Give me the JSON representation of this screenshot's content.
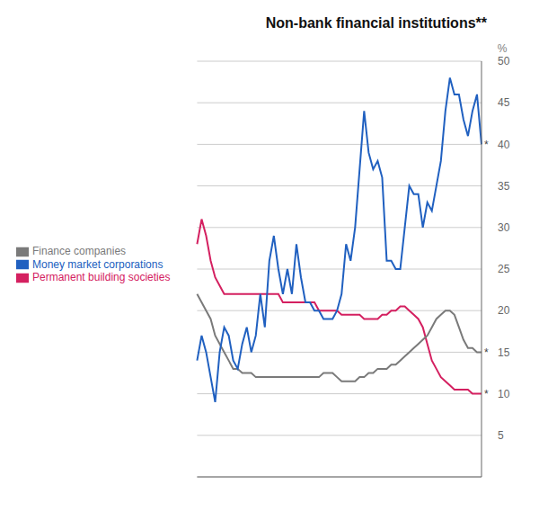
{
  "chart_data": {
    "type": "line",
    "title": "Non-bank financial institutions**",
    "categories": [
      null,
      null,
      null,
      null,
      null,
      null,
      null,
      null,
      null,
      null,
      null,
      null,
      null,
      null,
      null,
      null,
      null,
      null,
      null,
      null,
      null,
      null,
      null,
      null,
      null,
      null,
      null,
      null,
      null,
      null,
      null,
      null,
      null,
      null,
      null,
      null,
      null,
      null,
      null,
      null,
      null,
      null,
      null,
      null,
      null,
      null,
      null,
      null,
      null,
      null,
      null,
      null,
      null,
      null,
      null,
      null,
      null,
      null,
      null,
      null,
      null,
      null,
      null,
      null
    ],
    "series": [
      {
        "name": "Permanent building societies",
        "color": "#d42060",
        "values": [
          28,
          31,
          29,
          26,
          24,
          23,
          22,
          22,
          22,
          22,
          22,
          22,
          22,
          22,
          22,
          22,
          22,
          22,
          22,
          21,
          21,
          21,
          21,
          21,
          21,
          21,
          21,
          20,
          20,
          20,
          20,
          20,
          19.5,
          19.5,
          19.5,
          19.5,
          19.5,
          19,
          19,
          19,
          19,
          19.5,
          19.5,
          20,
          20,
          20.5,
          20.5,
          20,
          19.5,
          19,
          18,
          16,
          14,
          13,
          12,
          11.5,
          11,
          10.5,
          10.5,
          10.5,
          10.5,
          10,
          10,
          10
        ]
      },
      {
        "name": "Finance companies",
        "color": "#7a7a7a",
        "values": [
          22,
          21,
          20,
          19,
          17,
          16,
          15,
          14,
          13,
          13,
          12.5,
          12.5,
          12.5,
          12,
          12,
          12,
          12,
          12,
          12,
          12,
          12,
          12,
          12,
          12,
          12,
          12,
          12,
          12,
          12.5,
          12.5,
          12.5,
          12,
          11.5,
          11.5,
          11.5,
          11.5,
          12,
          12,
          12.5,
          12.5,
          13,
          13,
          13,
          13.5,
          13.5,
          14,
          14.5,
          15,
          15.5,
          16,
          16.5,
          17,
          18,
          19,
          19.5,
          20,
          20,
          19.5,
          18,
          16.5,
          15.5,
          15.5,
          15,
          15
        ]
      },
      {
        "name": "Money market corporations",
        "color": "#2060c0",
        "values": [
          14,
          17,
          15,
          12,
          9,
          15,
          18,
          17,
          14,
          13,
          16,
          18,
          15,
          17,
          22,
          18,
          26,
          29,
          25,
          22,
          25,
          22,
          28,
          24,
          21,
          21,
          20,
          20,
          19,
          19,
          19,
          20,
          22,
          28,
          26,
          30,
          37,
          44,
          39,
          37,
          38,
          36,
          26,
          26,
          25,
          25,
          30,
          35,
          34,
          34,
          30,
          33,
          32,
          35,
          38,
          44,
          48,
          46,
          46,
          43,
          41,
          44,
          46,
          40
        ]
      }
    ],
    "ylim": [
      0,
      50
    ],
    "yticks": [
      5,
      10,
      15,
      20,
      25,
      30,
      35,
      40,
      45,
      50
    ],
    "y_label": "%",
    "grid": true,
    "legend": "left",
    "tick_labels": "y",
    "annotations": [
      {
        "text": "*",
        "y": 40
      },
      {
        "text": "*",
        "y": 15
      },
      {
        "text": "*",
        "y": 10
      }
    ]
  }
}
